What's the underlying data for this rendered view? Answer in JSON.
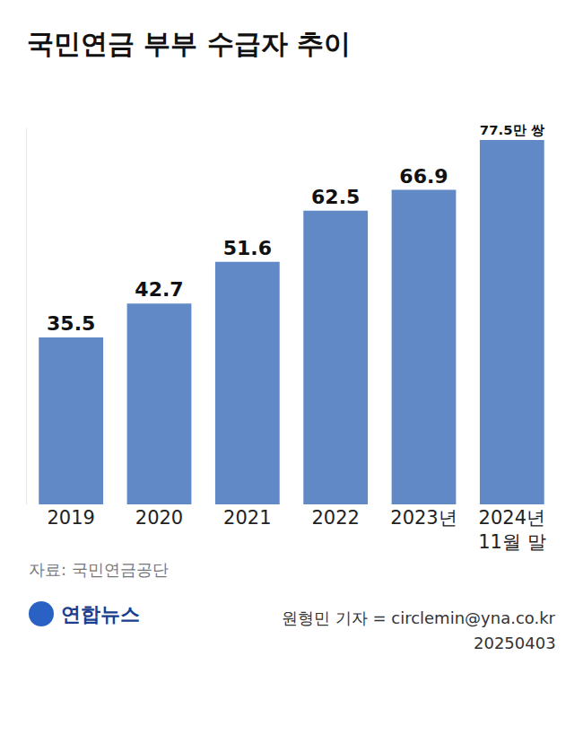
{
  "chart_data": {
    "type": "bar",
    "title": "국민연금 부부 수급자 추이",
    "categories": [
      "2019",
      "2020",
      "2021",
      "2022",
      "2023년",
      "2024년\n11월 말"
    ],
    "values": [
      35.5,
      42.7,
      51.6,
      62.5,
      66.9,
      77.5
    ],
    "value_labels": [
      "35.5",
      "42.7",
      "51.6",
      "62.5",
      "66.9",
      "77.5만 쌍"
    ],
    "data_labels": true,
    "color": "#6189c6",
    "ylim": [
      0,
      80
    ],
    "yticks": [],
    "grid": false,
    "tick_labels": "x",
    "source": "자료: 국민연금공단",
    "publisher": "연합뉴스",
    "byline": "원형민 기자 = circlemin@yna.co.kr",
    "date": "20250403"
  }
}
